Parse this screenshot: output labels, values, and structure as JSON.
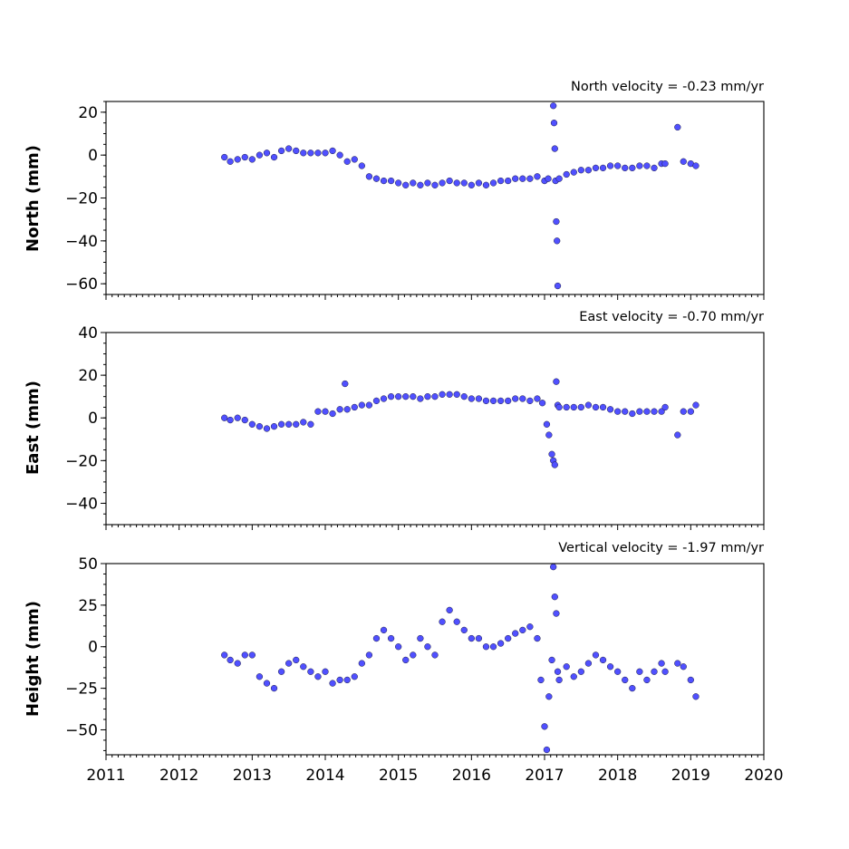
{
  "chart_data": [
    {
      "type": "scatter",
      "annotation": "North velocity = -0.23 mm/yr",
      "ylabel": "North (mm)",
      "xlim": [
        2011,
        2020
      ],
      "ylim": [
        -65,
        25
      ],
      "yticks": [
        20,
        0,
        -20,
        -40,
        -60
      ],
      "yticklabels": [
        "20",
        "0",
        "−20",
        "−40",
        "−60"
      ],
      "marker_color": "#5050ff",
      "x": [
        2012.62,
        2012.7,
        2012.8,
        2012.9,
        2013.0,
        2013.1,
        2013.2,
        2013.3,
        2013.4,
        2013.5,
        2013.6,
        2013.7,
        2013.8,
        2013.9,
        2014.0,
        2014.1,
        2014.2,
        2014.3,
        2014.4,
        2014.5,
        2014.6,
        2014.7,
        2014.8,
        2014.9,
        2015.0,
        2015.1,
        2015.2,
        2015.3,
        2015.4,
        2015.5,
        2015.6,
        2015.7,
        2015.8,
        2015.9,
        2016.0,
        2016.1,
        2016.2,
        2016.3,
        2016.4,
        2016.5,
        2016.6,
        2016.7,
        2016.8,
        2016.9,
        2017.0,
        2017.05,
        2017.12,
        2017.13,
        2017.14,
        2017.15,
        2017.16,
        2017.17,
        2017.18,
        2017.2,
        2017.3,
        2017.4,
        2017.5,
        2017.6,
        2017.7,
        2017.8,
        2017.9,
        2018.0,
        2018.1,
        2018.2,
        2018.3,
        2018.4,
        2018.5,
        2018.6,
        2018.65,
        2018.82,
        2018.9,
        2019.0,
        2019.07
      ],
      "y": [
        -1,
        -3,
        -2,
        -1,
        -2,
        0,
        1,
        -1,
        2,
        3,
        2,
        1,
        1,
        1,
        1,
        2,
        0,
        -3,
        -2,
        -5,
        -10,
        -11,
        -12,
        -12,
        -13,
        -14,
        -13,
        -14,
        -13,
        -14,
        -13,
        -12,
        -13,
        -13,
        -14,
        -13,
        -14,
        -13,
        -12,
        -12,
        -11,
        -11,
        -11,
        -10,
        -12,
        -11,
        23,
        15,
        3,
        -12,
        -31,
        -40,
        -61,
        -11,
        -9,
        -8,
        -7,
        -7,
        -6,
        -6,
        -5,
        -5,
        -6,
        -6,
        -5,
        -5,
        -6,
        -4,
        -4,
        13,
        -3,
        -4,
        -5
      ]
    },
    {
      "type": "scatter",
      "annotation": "East velocity = -0.70 mm/yr",
      "ylabel": "East (mm)",
      "xlim": [
        2011,
        2020
      ],
      "ylim": [
        -50,
        40
      ],
      "yticks": [
        40,
        20,
        0,
        -20,
        -40
      ],
      "yticklabels": [
        "40",
        "20",
        "0",
        "−20",
        "−40"
      ],
      "marker_color": "#5050ff",
      "x": [
        2012.62,
        2012.7,
        2012.8,
        2012.9,
        2013.0,
        2013.1,
        2013.2,
        2013.3,
        2013.4,
        2013.5,
        2013.6,
        2013.7,
        2013.8,
        2013.9,
        2014.0,
        2014.1,
        2014.2,
        2014.27,
        2014.3,
        2014.4,
        2014.5,
        2014.6,
        2014.7,
        2014.8,
        2014.9,
        2015.0,
        2015.1,
        2015.2,
        2015.3,
        2015.4,
        2015.5,
        2015.6,
        2015.7,
        2015.8,
        2015.9,
        2016.0,
        2016.1,
        2016.2,
        2016.3,
        2016.4,
        2016.5,
        2016.6,
        2016.7,
        2016.8,
        2016.9,
        2016.97,
        2017.03,
        2017.06,
        2017.1,
        2017.12,
        2017.14,
        2017.16,
        2017.18,
        2017.2,
        2017.3,
        2017.4,
        2017.5,
        2017.6,
        2017.7,
        2017.8,
        2017.9,
        2018.0,
        2018.1,
        2018.2,
        2018.3,
        2018.4,
        2018.5,
        2018.6,
        2018.65,
        2018.82,
        2018.9,
        2019.0,
        2019.07
      ],
      "y": [
        0,
        -1,
        0,
        -1,
        -3,
        -4,
        -5,
        -4,
        -3,
        -3,
        -3,
        -2,
        -3,
        3,
        3,
        2,
        4,
        16,
        4,
        5,
        6,
        6,
        8,
        9,
        10,
        10,
        10,
        10,
        9,
        10,
        10,
        11,
        11,
        11,
        10,
        9,
        9,
        8,
        8,
        8,
        8,
        9,
        9,
        8,
        9,
        7,
        -3,
        -8,
        -17,
        -20,
        -22,
        17,
        6,
        5,
        5,
        5,
        5,
        6,
        5,
        5,
        4,
        3,
        3,
        2,
        3,
        3,
        3,
        3,
        5,
        -8,
        3,
        3,
        6
      ]
    },
    {
      "type": "scatter",
      "annotation": "Vertical velocity = -1.97 mm/yr",
      "ylabel": "Height (mm)",
      "xlim": [
        2011,
        2020
      ],
      "ylim": [
        -65,
        50
      ],
      "yticks": [
        50,
        25,
        0,
        -25,
        -50
      ],
      "yticklabels": [
        "50",
        "25",
        "0",
        "−25",
        "−50"
      ],
      "marker_color": "#5050ff",
      "x": [
        2012.62,
        2012.7,
        2012.8,
        2012.9,
        2013.0,
        2013.1,
        2013.2,
        2013.3,
        2013.4,
        2013.5,
        2013.6,
        2013.7,
        2013.8,
        2013.9,
        2014.0,
        2014.1,
        2014.2,
        2014.3,
        2014.4,
        2014.5,
        2014.6,
        2014.7,
        2014.8,
        2014.9,
        2015.0,
        2015.1,
        2015.2,
        2015.3,
        2015.4,
        2015.5,
        2015.6,
        2015.7,
        2015.8,
        2015.9,
        2016.0,
        2016.1,
        2016.2,
        2016.3,
        2016.4,
        2016.5,
        2016.6,
        2016.7,
        2016.8,
        2016.9,
        2016.95,
        2017.0,
        2017.03,
        2017.06,
        2017.1,
        2017.12,
        2017.14,
        2017.16,
        2017.18,
        2017.2,
        2017.3,
        2017.4,
        2017.5,
        2017.6,
        2017.7,
        2017.8,
        2017.9,
        2018.0,
        2018.1,
        2018.2,
        2018.3,
        2018.4,
        2018.5,
        2018.6,
        2018.65,
        2018.82,
        2018.9,
        2019.0,
        2019.07
      ],
      "y": [
        -5,
        -8,
        -10,
        -5,
        -5,
        -18,
        -22,
        -25,
        -15,
        -10,
        -8,
        -12,
        -15,
        -18,
        -15,
        -22,
        -20,
        -20,
        -18,
        -10,
        -5,
        5,
        10,
        5,
        0,
        -8,
        -5,
        5,
        0,
        -5,
        15,
        22,
        15,
        10,
        5,
        5,
        0,
        0,
        2,
        5,
        8,
        10,
        12,
        5,
        -20,
        -48,
        -62,
        -30,
        -8,
        48,
        30,
        20,
        -15,
        -20,
        -12,
        -18,
        -15,
        -10,
        -5,
        -8,
        -12,
        -15,
        -20,
        -25,
        -15,
        -20,
        -15,
        -10,
        -15,
        -10,
        -12,
        -20,
        -30
      ]
    }
  ],
  "x_tick_labels": [
    "2011",
    "2012",
    "2013",
    "2014",
    "2015",
    "2016",
    "2017",
    "2018",
    "2019",
    "2020"
  ]
}
